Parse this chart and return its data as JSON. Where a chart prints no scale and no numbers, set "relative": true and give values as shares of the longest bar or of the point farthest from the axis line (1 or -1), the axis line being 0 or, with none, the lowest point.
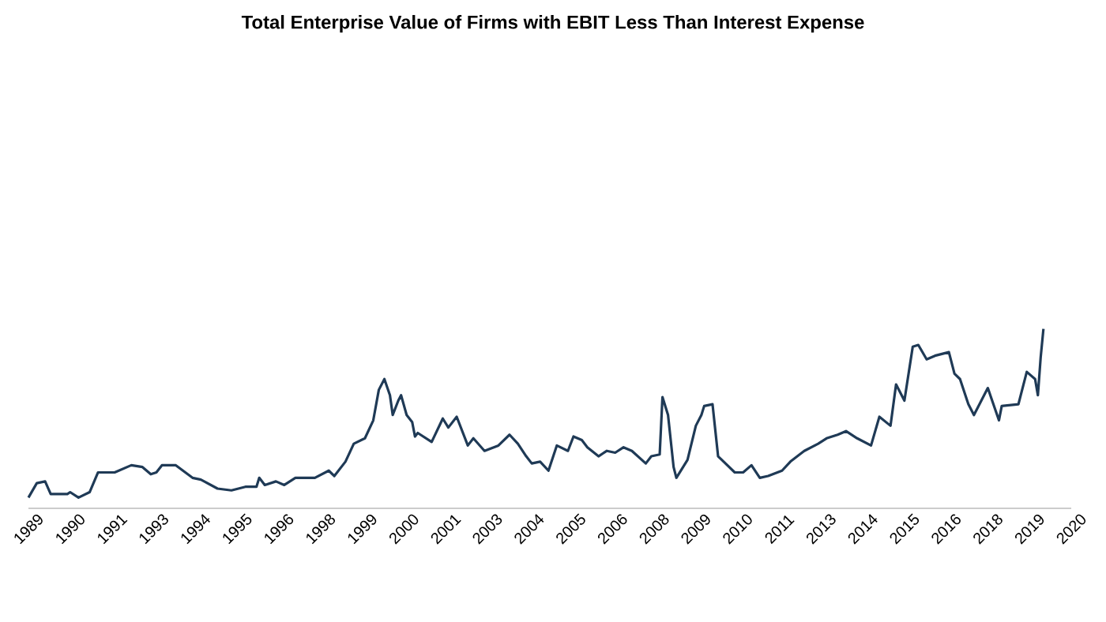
{
  "chart_data": {
    "type": "line",
    "title": "Total Enterprise Value of Firms with EBIT Less Than Interest Expense",
    "relative": true,
    "xlim": [
      "1989-05",
      "2020-08"
    ],
    "xticks": [
      {
        "value": "1989-05",
        "label": "1989"
      },
      {
        "value": "1990-08",
        "label": "1990"
      },
      {
        "value": "1991-11",
        "label": "1991"
      },
      {
        "value": "1993-02",
        "label": "1993"
      },
      {
        "value": "1994-05",
        "label": "1994"
      },
      {
        "value": "1995-08",
        "label": "1995"
      },
      {
        "value": "1996-11",
        "label": "1996"
      },
      {
        "value": "1998-02",
        "label": "1998"
      },
      {
        "value": "1999-05",
        "label": "1999"
      },
      {
        "value": "2000-08",
        "label": "2000"
      },
      {
        "value": "2001-11",
        "label": "2001"
      },
      {
        "value": "2003-02",
        "label": "2003"
      },
      {
        "value": "2004-05",
        "label": "2004"
      },
      {
        "value": "2005-08",
        "label": "2005"
      },
      {
        "value": "2006-11",
        "label": "2006"
      },
      {
        "value": "2008-02",
        "label": "2008"
      },
      {
        "value": "2009-05",
        "label": "2009"
      },
      {
        "value": "2010-08",
        "label": "2010"
      },
      {
        "value": "2011-11",
        "label": "2011"
      },
      {
        "value": "2013-02",
        "label": "2013"
      },
      {
        "value": "2014-05",
        "label": "2014"
      },
      {
        "value": "2015-08",
        "label": "2015"
      },
      {
        "value": "2016-11",
        "label": "2016"
      },
      {
        "value": "2018-02",
        "label": "2018"
      },
      {
        "value": "2019-05",
        "label": "2019"
      },
      {
        "value": "2020-08",
        "label": "2020"
      }
    ],
    "series": [
      {
        "color": "#1f3a56",
        "x": [
          "1989-05",
          "1989-08",
          "1989-11",
          "1990-01",
          "1990-07",
          "1990-08",
          "1990-11",
          "1991-03",
          "1991-06",
          "1991-12",
          "1992-06",
          "1992-10",
          "1993-01",
          "1993-03",
          "1993-05",
          "1993-10",
          "1994-04",
          "1994-07",
          "1995-01",
          "1995-06",
          "1995-11",
          "1996-03",
          "1996-04",
          "1996-06",
          "1996-10",
          "1997-01",
          "1997-05",
          "1997-08",
          "1997-12",
          "1998-05",
          "1998-07",
          "1998-11",
          "1999-02",
          "1999-06",
          "1999-09",
          "1999-11",
          "2000-01",
          "2000-03",
          "2000-04",
          "2000-06",
          "2000-07",
          "2000-09",
          "2000-11",
          "2000-12",
          "2001-01",
          "2001-06",
          "2001-10",
          "2001-12",
          "2002-03",
          "2002-07",
          "2002-09",
          "2003-01",
          "2003-06",
          "2003-10",
          "2004-01",
          "2004-04",
          "2004-06",
          "2004-09",
          "2004-12",
          "2005-03",
          "2005-07",
          "2005-09",
          "2005-12",
          "2006-02",
          "2006-06",
          "2006-09",
          "2006-12",
          "2007-03",
          "2007-06",
          "2007-11",
          "2008-01",
          "2008-04",
          "2008-05",
          "2008-07",
          "2008-09",
          "2008-10",
          "2009-02",
          "2009-05",
          "2009-07",
          "2009-08",
          "2009-11",
          "2010-01",
          "2010-03",
          "2010-07",
          "2010-10",
          "2011-01",
          "2011-04",
          "2011-07",
          "2011-12",
          "2012-03",
          "2012-08",
          "2013-01",
          "2013-04",
          "2013-08",
          "2013-11",
          "2014-03",
          "2014-08",
          "2014-11",
          "2015-03",
          "2015-05",
          "2015-08",
          "2015-11",
          "2016-01",
          "2016-04",
          "2016-07",
          "2016-12",
          "2017-02",
          "2017-04",
          "2017-07",
          "2017-09",
          "2018-02",
          "2018-06",
          "2018-07",
          "2019-01",
          "2019-04",
          "2019-07",
          "2019-08",
          "2019-09",
          "2019-10"
        ],
        "values": [
          0.06,
          0.14,
          0.15,
          0.08,
          0.08,
          0.09,
          0.06,
          0.09,
          0.2,
          0.2,
          0.24,
          0.23,
          0.19,
          0.2,
          0.24,
          0.24,
          0.17,
          0.16,
          0.11,
          0.1,
          0.12,
          0.12,
          0.17,
          0.13,
          0.15,
          0.13,
          0.17,
          0.17,
          0.17,
          0.21,
          0.18,
          0.26,
          0.36,
          0.39,
          0.49,
          0.66,
          0.72,
          0.63,
          0.52,
          0.6,
          0.63,
          0.52,
          0.48,
          0.4,
          0.42,
          0.37,
          0.5,
          0.45,
          0.51,
          0.35,
          0.39,
          0.32,
          0.35,
          0.41,
          0.36,
          0.29,
          0.25,
          0.26,
          0.21,
          0.35,
          0.32,
          0.4,
          0.38,
          0.34,
          0.29,
          0.32,
          0.31,
          0.34,
          0.32,
          0.25,
          0.29,
          0.3,
          0.62,
          0.52,
          0.23,
          0.17,
          0.27,
          0.46,
          0.52,
          0.57,
          0.58,
          0.29,
          0.26,
          0.2,
          0.2,
          0.24,
          0.17,
          0.18,
          0.21,
          0.26,
          0.32,
          0.36,
          0.39,
          0.41,
          0.43,
          0.39,
          0.35,
          0.51,
          0.46,
          0.69,
          0.6,
          0.9,
          0.91,
          0.83,
          0.85,
          0.87,
          0.75,
          0.72,
          0.58,
          0.52,
          0.67,
          0.49,
          0.57,
          0.58,
          0.76,
          0.72,
          0.63,
          0.84,
          1.0
        ]
      }
    ]
  }
}
